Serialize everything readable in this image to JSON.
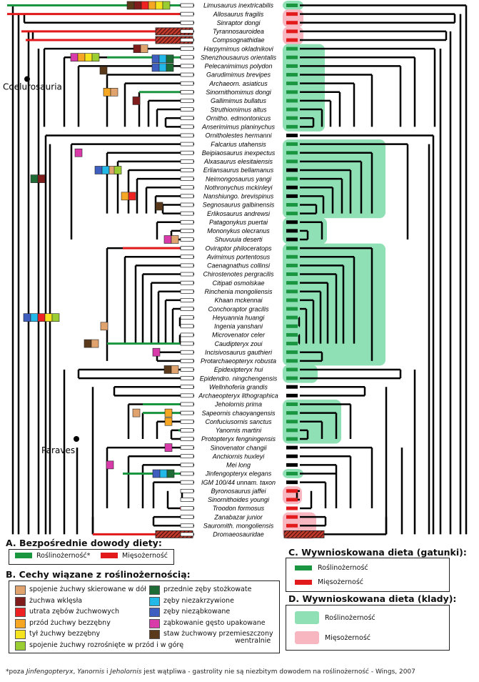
{
  "colors": {
    "herb": "#1a9641",
    "carn": "#e31a1c",
    "herb_clade": "#8fe0b5",
    "carn_clade": "#f8b7c0",
    "t1": "#e0a36e",
    "t2": "#7f1d1d",
    "t3": "#ee2222",
    "t4": "#f5a623",
    "t5": "#f4e31d",
    "t6": "#9acd32",
    "t7": "#1e6b35",
    "t8": "#22b8e8",
    "t9": "#3f5fc0",
    "t10": "#d83aa9",
    "t11": "#5a3a1a"
  },
  "taxa": [
    {
      "name": "Limusaurus inextricabilis",
      "diet": "herb"
    },
    {
      "name": "Allosaurus fragilis",
      "diet": "carn"
    },
    {
      "name": "Sinraptor dongi",
      "diet": "carn"
    },
    {
      "name": "Tyrannosauroidea",
      "diet": "carn"
    },
    {
      "name": "Compsognathidae",
      "diet": "carn"
    },
    {
      "name": "Harpymimus okladnikovi",
      "diet": "herb"
    },
    {
      "name": "Shenzhousaurus orientalis",
      "diet": "herb"
    },
    {
      "name": "Pelecanimimus polydon",
      "diet": "herb"
    },
    {
      "name": "Garudimimus brevipes",
      "diet": "herb"
    },
    {
      "name": "Archaeorn. asiaticus",
      "diet": "herb"
    },
    {
      "name": "Sinornithomimus dongi",
      "diet": "herb"
    },
    {
      "name": "Gallimimus bullatus",
      "diet": "herb"
    },
    {
      "name": "Struthiomimus altus",
      "diet": "herb"
    },
    {
      "name": "Ornitho. edmontonicus",
      "diet": "herb"
    },
    {
      "name": "Anserimimus planinychus",
      "diet": "herb"
    },
    {
      "name": "Ornitholestes hermanni",
      "diet": "none"
    },
    {
      "name": "Falcarius utahensis",
      "diet": "herb"
    },
    {
      "name": "Beipiaosaurus inexpectus",
      "diet": "herb"
    },
    {
      "name": "Alxasaurus elesitaiensis",
      "diet": "herb"
    },
    {
      "name": "Erliansaurus bellamanus",
      "diet": "none"
    },
    {
      "name": "Neimongosaurus yangi",
      "diet": "herb"
    },
    {
      "name": "Nothronychus mckinleyi",
      "diet": "none"
    },
    {
      "name": "Nanshiungo. brevispinus",
      "diet": "none"
    },
    {
      "name": "Segnosaurus galbinensis",
      "diet": "herb"
    },
    {
      "name": "Erlikosaurus andrewsi",
      "diet": "herb"
    },
    {
      "name": "Patagonykus puertai",
      "diet": "none"
    },
    {
      "name": "Mononykus olecranus",
      "diet": "none"
    },
    {
      "name": "Shuvuuia deserti",
      "diet": "none"
    },
    {
      "name": "Oviraptor philoceratops",
      "diet": "herb"
    },
    {
      "name": "Avimimus portentosus",
      "diet": "herb"
    },
    {
      "name": "Caenagnathus collinsi",
      "diet": "herb"
    },
    {
      "name": "Chirostenotes pergracilis",
      "diet": "herb"
    },
    {
      "name": "Citipati osmolskae",
      "diet": "herb"
    },
    {
      "name": "Rinchenia mongoliensis",
      "diet": "herb"
    },
    {
      "name": "Khaan mckennai",
      "diet": "herb"
    },
    {
      "name": "Conchoraptor gracilis",
      "diet": "herb"
    },
    {
      "name": "Heyuannia huangi",
      "diet": "herb"
    },
    {
      "name": "Ingenia yanshani",
      "diet": "herb"
    },
    {
      "name": "Microvenator celer",
      "diet": "herb"
    },
    {
      "name": "Caudipteryx zoui",
      "diet": "herb"
    },
    {
      "name": "Incisivosaurus gauthieri",
      "diet": "herb"
    },
    {
      "name": "Protarchaeopteryx robusta",
      "diet": "herb"
    },
    {
      "name": "Epidexipteryx hui",
      "diet": "herb"
    },
    {
      "name": "Epidendro. ningchengensis",
      "diet": "herb"
    },
    {
      "name": "Wellnhoferia grandis",
      "diet": "none"
    },
    {
      "name": "Archaeopteryx lithographica",
      "diet": "none"
    },
    {
      "name": "Jeholornis prima",
      "diet": "herb"
    },
    {
      "name": "Sapeornis chaoyangensis",
      "diet": "herb"
    },
    {
      "name": "Confuciusornis sanctus",
      "diet": "herb"
    },
    {
      "name": "Yanornis martini",
      "diet": "herb"
    },
    {
      "name": "Protopteryx fengningensis",
      "diet": "herb"
    },
    {
      "name": "Sinovenator changii",
      "diet": "none"
    },
    {
      "name": "Anchiornis huxleyi",
      "diet": "none"
    },
    {
      "name": "Mei long",
      "diet": "none"
    },
    {
      "name": "Jinfengopteryx elegans",
      "diet": "herb"
    },
    {
      "name": "IGM 100/44 unnam. taxon",
      "diet": "none"
    },
    {
      "name": "Byronosaurus jaffei",
      "diet": "carn"
    },
    {
      "name": "Sinornithoides youngi",
      "diet": "carn"
    },
    {
      "name": "Troodon formosus",
      "diet": "carn"
    },
    {
      "name": "Zanabazar junior",
      "diet": "carn"
    },
    {
      "name": "Sauromith. mongoliensis",
      "diet": "carn"
    },
    {
      "name": "Dromaeosauridae",
      "diet": "carn"
    }
  ],
  "clade_labels": {
    "coelurosauria": "Coelurosauria",
    "paraves": "Paraves"
  },
  "legend_a": {
    "title": "A. Bezpośrednie dowody diety:",
    "herb": "Roślinożerność*",
    "carn": "Mięsożerność"
  },
  "legend_b": {
    "title": "B. Cechy wiązane z roślinożernością:",
    "items": [
      {
        "label": "spojenie żuchwy skierowane w dół",
        "color": "#e0a36e"
      },
      {
        "label": "żuchwa wklęsła",
        "color": "#7f1d1d"
      },
      {
        "label": "utrata zębów żuchwowych",
        "color": "#ee2222"
      },
      {
        "label": "przód żuchwy bezzębny",
        "color": "#f5a623"
      },
      {
        "label": "tył żuchwy bezzębny",
        "color": "#f4e31d"
      },
      {
        "label": "spojenie żuchwy rozrośnięte w przód i w górę",
        "color": "#9acd32"
      },
      {
        "label": "przednie zęby stożkowate",
        "color": "#1e6b35"
      },
      {
        "label": "zęby niezakrzywione",
        "color": "#22b8e8"
      },
      {
        "label": "zęby nieząbkowane",
        "color": "#3f5fc0"
      },
      {
        "label": "ząbkowanie gęsto upakowane",
        "color": "#d83aa9"
      },
      {
        "label": "staw żuchwowy przemieszczony",
        "color": "#5a3a1a"
      },
      {
        "label": "wentralnie",
        "color": ""
      }
    ]
  },
  "legend_c": {
    "title": "C. Wywnioskowana dieta (gatunki):",
    "herb": "Roślinożerność",
    "carn": "Mięsożerność"
  },
  "legend_d": {
    "title": "D. Wywnioskowana dieta (klady):",
    "herb": "Roślinożerność",
    "carn": "Mięsożerność"
  },
  "footnote": {
    "p1": "*poza ",
    "t1": "Jinfengopteryx",
    "p2": ", ",
    "t2": "Yanornis",
    "p3": " i ",
    "t3": "Jeholornis",
    "p4": " jest wątpliwa - gastrolity nie są niezbitym dowodem na roślinożerność - Wings, 2007"
  }
}
